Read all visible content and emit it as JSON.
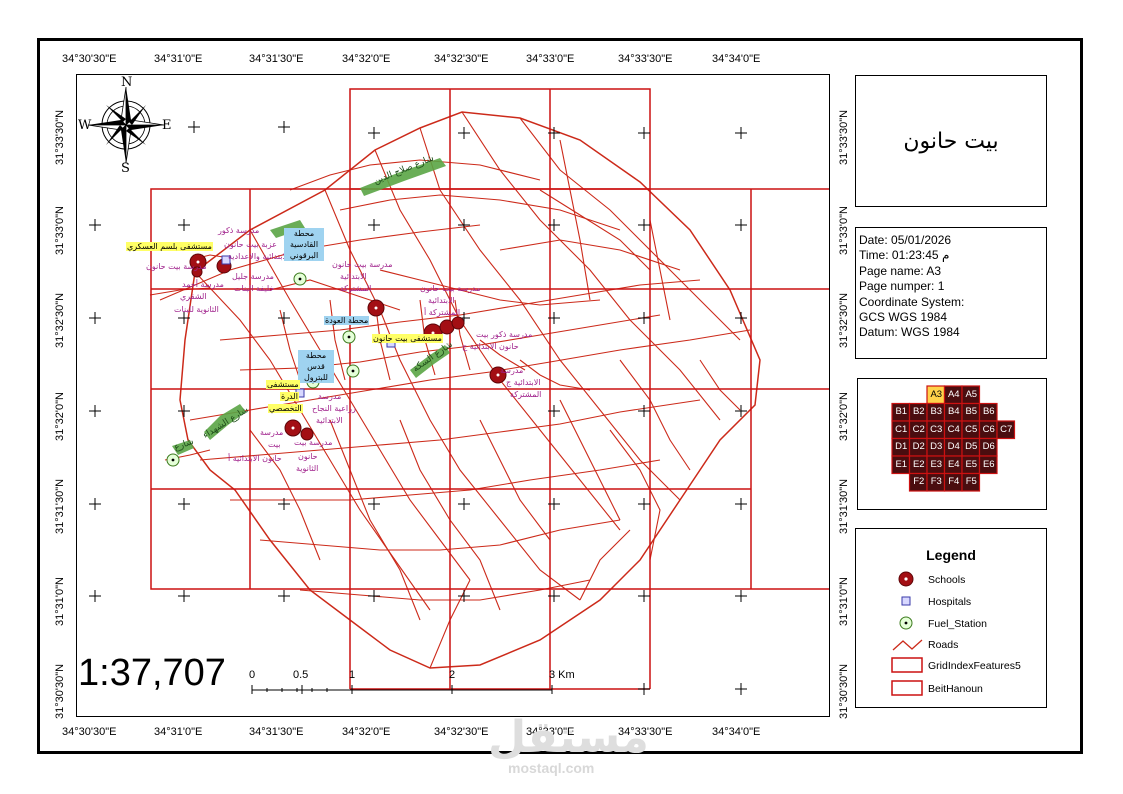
{
  "map": {
    "title": "بيت حانون",
    "scale": "1:37,707",
    "scale_bar": {
      "labels": [
        "0",
        "0.5",
        "1",
        "2",
        "3 Km"
      ]
    },
    "top_coords": [
      "34°30'30\"E",
      "34°31'0\"E",
      "34°31'30\"E",
      "34°32'0\"E",
      "34°32'30\"E",
      "34°33'0\"E",
      "34°33'30\"E",
      "34°34'0\"E"
    ],
    "bottom_coords": [
      "34°30'30\"E",
      "34°31'0\"E",
      "34°31'30\"E",
      "34°32'0\"E",
      "34°32'30\"E",
      "34°33'0\"E",
      "34°33'30\"E",
      "34°34'0\"E"
    ],
    "left_coords": [
      "31°33'30\"N",
      "31°33'0\"N",
      "31°32'30\"N",
      "31°32'0\"N",
      "31°31'30\"N",
      "31°31'0\"N",
      "31°30'30\"N"
    ],
    "right_coords": [
      "31°33'30\"N",
      "31°33'0\"N",
      "31°32'30\"N",
      "31°32'0\"N",
      "31°31'30\"N",
      "31°31'0\"N",
      "31°30'30\"N"
    ],
    "compass": {
      "n": "N",
      "s": "S",
      "e": "E",
      "w": "W"
    },
    "labels": {
      "school_beit_hanoun_boys": "مدرسة بيت حانون",
      "hospital_military": "مستشفى بلسم العسكري",
      "girls_school": "مدرسة ذكور",
      "beit_hanoun_prep": "عزبة بيت حانون",
      "primary_prep": "الابتدائية والاعدادية",
      "tayba_school": "مدرسة أحمد",
      "shaqra": "الشقري",
      "secondary_girls": "الثانوية للبنات",
      "prep_girls": "مدرسة جليل",
      "beit_hanoun_girls": "خليفة البنات",
      "fuel_1": "محطة القادسية البرقوني",
      "fuel_2": "محطة العودة",
      "fuel_3": "محطة قدس للبترول",
      "beit_hanoun_school2": "مدرسة بيت حانون",
      "primary_2": "الابتدائية",
      "mixed_1": "المشتركة",
      "school_3": "مدرسة بيت حانون",
      "primary_3": "الابتدائية",
      "mixed_3": "المشتركة أ",
      "boys_school_4": "مدرسة ذكور بيت",
      "primary_4": "حانون الابتدائية ج",
      "beit_hanoun_health": "مستشفى بيت حانون",
      "hospital_2": "مستشفى",
      "hospital_2b": "الدرة",
      "hospital_2c": "التخصصي",
      "school_5": "مدرسة",
      "school_5b": "زراعية النجاح",
      "school_5c": "الابتدائية",
      "school_6": "مدرسة",
      "school_6b": "بيت",
      "school_6c": "حانون الابتدائية أ",
      "school_7": "مدرسة بيت",
      "school_7b": "حانون",
      "school_7c": "الثانوية",
      "school_8": "مدرسة",
      "school_8b": "الابتدائية ج",
      "school_8c": "المشتركة",
      "street_1": "شارع صلاح الدين",
      "street_2": "شارع الشهداء",
      "street_3": "شارع السكة",
      "street_4": "شارع"
    }
  },
  "info": {
    "date": "Date: 05/01/2026",
    "time": "Time: 01:23:45 م",
    "page_name": "Page name: A3",
    "page_number": "Page numper: 1",
    "coord_system": "Coordinate System:",
    "gcs": " GCS WGS 1984",
    "datum": "Datum: WGS 1984"
  },
  "index_grid": {
    "cells": [
      [
        "A3",
        "A4",
        "A5"
      ],
      [
        "B1",
        "B2",
        "B3",
        "B4",
        "B5",
        "B6"
      ],
      [
        "C1",
        "C2",
        "C3",
        "C4",
        "C5",
        "C6",
        "C7"
      ],
      [
        "D1",
        "D2",
        "D3",
        "D4",
        "D5",
        "D6"
      ],
      [
        "E1",
        "E2",
        "E3",
        "E4",
        "E5",
        "E6"
      ],
      [
        "F2",
        "F3",
        "F4",
        "F5"
      ]
    ],
    "highlight": "A3"
  },
  "legend": {
    "title": "Legend",
    "items": [
      "Schools",
      "Hospitals",
      "Fuel_Station",
      "Roads",
      "GridIndexFeatures5",
      "BeitHanoun"
    ]
  },
  "colors": {
    "road": "#cc2a1a",
    "grid": "#cc1111",
    "school": "#a30f14",
    "hospital": "#3a3aaa",
    "fuel": "#3c7a1e",
    "highlight": "#ffd24a",
    "street_label": "#3f8c3a"
  },
  "watermark": {
    "text": "مستقل",
    "site": "mostaql.com"
  }
}
